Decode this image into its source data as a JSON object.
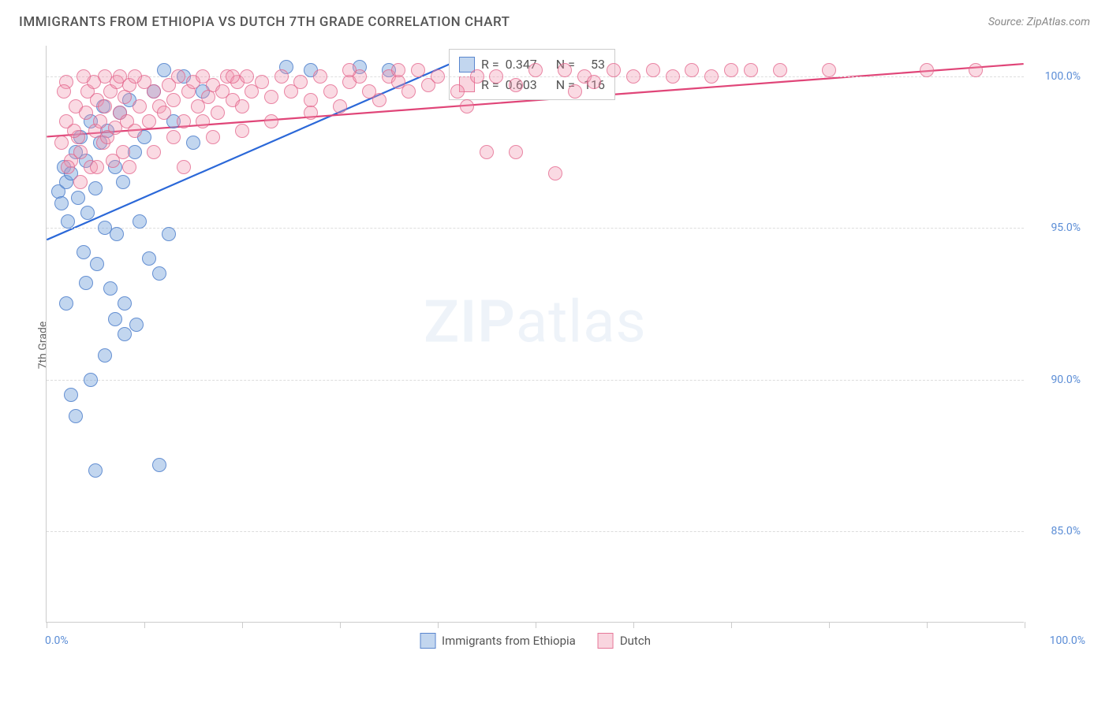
{
  "header": {
    "title": "IMMIGRANTS FROM ETHIOPIA VS DUTCH 7TH GRADE CORRELATION CHART",
    "source": "Source: ZipAtlas.com"
  },
  "chart": {
    "type": "scatter",
    "ylabel": "7th Grade",
    "xlim": [
      0,
      100
    ],
    "ylim": [
      82,
      101
    ],
    "ytick_labels": [
      "85.0%",
      "90.0%",
      "95.0%",
      "100.0%"
    ],
    "ytick_values": [
      85,
      90,
      95,
      100
    ],
    "xtick_values": [
      0,
      10,
      20,
      30,
      40,
      50,
      60,
      70,
      80,
      90,
      100
    ],
    "xaxis_left": "0.0%",
    "xaxis_right": "100.0%",
    "background_color": "#ffffff",
    "grid_color": "#dddddd",
    "axis_color": "#cccccc",
    "tick_font_color": "#5b8dd6",
    "label_font_color": "#666666",
    "title_font_color": "#555555",
    "title_fontsize": 17,
    "label_fontsize": 14,
    "watermark": "ZIPatlas",
    "series": [
      {
        "name": "Immigrants from Ethiopia",
        "color_fill": "rgba(120,165,220,0.45)",
        "color_stroke": "rgba(70,120,200,0.75)",
        "trend_color": "#2b68d8",
        "trend": {
          "x1": 0,
          "y1": 94.6,
          "x2": 42,
          "y2": 100.5
        },
        "marker_radius": 9,
        "R": "0.347",
        "N": "53",
        "points": [
          [
            1.2,
            96.2
          ],
          [
            1.5,
            95.8
          ],
          [
            1.8,
            97.0
          ],
          [
            2.0,
            96.5
          ],
          [
            2.2,
            95.2
          ],
          [
            2.5,
            96.8
          ],
          [
            3.0,
            97.5
          ],
          [
            3.2,
            96.0
          ],
          [
            3.5,
            98.0
          ],
          [
            3.8,
            94.2
          ],
          [
            4.0,
            97.2
          ],
          [
            4.2,
            95.5
          ],
          [
            4.5,
            98.5
          ],
          [
            5.0,
            96.3
          ],
          [
            5.2,
            93.8
          ],
          [
            5.5,
            97.8
          ],
          [
            5.8,
            99.0
          ],
          [
            6.0,
            95.0
          ],
          [
            6.2,
            98.2
          ],
          [
            6.5,
            93.0
          ],
          [
            7.0,
            97.0
          ],
          [
            7.2,
            94.8
          ],
          [
            7.5,
            98.8
          ],
          [
            7.8,
            96.5
          ],
          [
            8.0,
            92.5
          ],
          [
            8.5,
            99.2
          ],
          [
            9.0,
            97.5
          ],
          [
            9.2,
            91.8
          ],
          [
            9.5,
            95.2
          ],
          [
            10.0,
            98.0
          ],
          [
            10.5,
            94.0
          ],
          [
            11.0,
            99.5
          ],
          [
            11.5,
            93.5
          ],
          [
            12.0,
            100.2
          ],
          [
            12.5,
            94.8
          ],
          [
            13.0,
            98.5
          ],
          [
            14.0,
            100.0
          ],
          [
            15.0,
            97.8
          ],
          [
            16.0,
            99.5
          ],
          [
            3.0,
            88.8
          ],
          [
            4.5,
            90.0
          ],
          [
            6.0,
            90.8
          ],
          [
            7.0,
            92.0
          ],
          [
            8.0,
            91.5
          ],
          [
            2.5,
            89.5
          ],
          [
            5.0,
            87.0
          ],
          [
            11.5,
            87.2
          ],
          [
            2.0,
            92.5
          ],
          [
            4.0,
            93.2
          ],
          [
            24.5,
            100.3
          ],
          [
            27.0,
            100.2
          ],
          [
            32.0,
            100.3
          ],
          [
            35.0,
            100.2
          ]
        ]
      },
      {
        "name": "Dutch",
        "color_fill": "rgba(240,150,175,0.35)",
        "color_stroke": "rgba(225,95,135,0.7)",
        "trend_color": "#e04578",
        "trend": {
          "x1": 0,
          "y1": 98.0,
          "x2": 100,
          "y2": 100.4
        },
        "marker_radius": 9,
        "R": "0.603",
        "N": "116",
        "points": [
          [
            1.5,
            97.8
          ],
          [
            2.0,
            98.5
          ],
          [
            2.5,
            97.2
          ],
          [
            3.0,
            99.0
          ],
          [
            3.2,
            98.0
          ],
          [
            3.5,
            97.5
          ],
          [
            4.0,
            98.8
          ],
          [
            4.2,
            99.5
          ],
          [
            4.5,
            97.0
          ],
          [
            5.0,
            98.2
          ],
          [
            5.2,
            99.2
          ],
          [
            5.5,
            98.5
          ],
          [
            5.8,
            97.8
          ],
          [
            6.0,
            99.0
          ],
          [
            6.2,
            98.0
          ],
          [
            6.5,
            99.5
          ],
          [
            7.0,
            98.3
          ],
          [
            7.2,
            99.8
          ],
          [
            7.5,
            98.8
          ],
          [
            7.8,
            97.5
          ],
          [
            8.0,
            99.3
          ],
          [
            8.2,
            98.5
          ],
          [
            8.5,
            99.7
          ],
          [
            9.0,
            98.2
          ],
          [
            9.5,
            99.0
          ],
          [
            10.0,
            99.8
          ],
          [
            10.5,
            98.5
          ],
          [
            11.0,
            99.5
          ],
          [
            11.5,
            99.0
          ],
          [
            12.0,
            98.8
          ],
          [
            12.5,
            99.7
          ],
          [
            13.0,
            99.2
          ],
          [
            13.5,
            100.0
          ],
          [
            14.0,
            98.5
          ],
          [
            14.5,
            99.5
          ],
          [
            15.0,
            99.8
          ],
          [
            15.5,
            99.0
          ],
          [
            16.0,
            100.0
          ],
          [
            16.5,
            99.3
          ],
          [
            17.0,
            99.7
          ],
          [
            17.5,
            98.8
          ],
          [
            18.0,
            99.5
          ],
          [
            18.5,
            100.0
          ],
          [
            19.0,
            99.2
          ],
          [
            19.5,
            99.8
          ],
          [
            20.0,
            99.0
          ],
          [
            20.5,
            100.0
          ],
          [
            21.0,
            99.5
          ],
          [
            22.0,
            99.8
          ],
          [
            23.0,
            99.3
          ],
          [
            24.0,
            100.0
          ],
          [
            25.0,
            99.5
          ],
          [
            26.0,
            99.8
          ],
          [
            27.0,
            99.2
          ],
          [
            28.0,
            100.0
          ],
          [
            29.0,
            99.5
          ],
          [
            30.0,
            99.0
          ],
          [
            31.0,
            99.8
          ],
          [
            32.0,
            100.0
          ],
          [
            33.0,
            99.5
          ],
          [
            34.0,
            99.2
          ],
          [
            35.0,
            100.0
          ],
          [
            36.0,
            99.8
          ],
          [
            37.0,
            99.5
          ],
          [
            38.0,
            100.2
          ],
          [
            39.0,
            99.7
          ],
          [
            40.0,
            100.0
          ],
          [
            42.0,
            99.5
          ],
          [
            44.0,
            100.0
          ],
          [
            45.0,
            97.5
          ],
          [
            46.0,
            100.0
          ],
          [
            48.0,
            99.7
          ],
          [
            50.0,
            100.2
          ],
          [
            52.0,
            96.8
          ],
          [
            53.0,
            100.2
          ],
          [
            54.0,
            99.5
          ],
          [
            55.0,
            100.0
          ],
          [
            56.0,
            99.8
          ],
          [
            58.0,
            100.2
          ],
          [
            60.0,
            100.0
          ],
          [
            62.0,
            100.2
          ],
          [
            64.0,
            100.0
          ],
          [
            66.0,
            100.2
          ],
          [
            68.0,
            100.0
          ],
          [
            70.0,
            100.2
          ],
          [
            72.0,
            100.2
          ],
          [
            75.0,
            100.2
          ],
          [
            80.0,
            100.2
          ],
          [
            90.0,
            100.2
          ],
          [
            95.0,
            100.2
          ],
          [
            2.0,
            99.8
          ],
          [
            3.5,
            96.5
          ],
          [
            6.0,
            100.0
          ],
          [
            8.5,
            97.0
          ],
          [
            11.0,
            97.5
          ],
          [
            14.0,
            97.0
          ],
          [
            17.0,
            98.0
          ],
          [
            20.0,
            98.2
          ],
          [
            2.8,
            98.2
          ],
          [
            4.8,
            99.8
          ],
          [
            6.8,
            97.2
          ],
          [
            9.0,
            100.0
          ],
          [
            13.0,
            98.0
          ],
          [
            16.0,
            98.5
          ],
          [
            19.0,
            100.0
          ],
          [
            23.0,
            98.5
          ],
          [
            27.0,
            98.8
          ],
          [
            31.0,
            100.2
          ],
          [
            36.0,
            100.2
          ],
          [
            43.0,
            99.0
          ],
          [
            48.0,
            97.5
          ],
          [
            1.8,
            99.5
          ],
          [
            2.2,
            97.0
          ],
          [
            3.8,
            100.0
          ],
          [
            5.2,
            97.0
          ],
          [
            7.5,
            100.0
          ]
        ]
      }
    ],
    "legend_box": {
      "rows": [
        {
          "swatch": "blue",
          "r_label": "R =",
          "r_val": "0.347",
          "n_label": "N =",
          "n_val": "53"
        },
        {
          "swatch": "pink",
          "r_label": "R =",
          "r_val": "0.603",
          "n_label": "N =",
          "n_val": "116"
        }
      ]
    },
    "bottom_legend": [
      {
        "swatch": "blue",
        "label": "Immigrants from Ethiopia"
      },
      {
        "swatch": "pink",
        "label": "Dutch"
      }
    ]
  }
}
